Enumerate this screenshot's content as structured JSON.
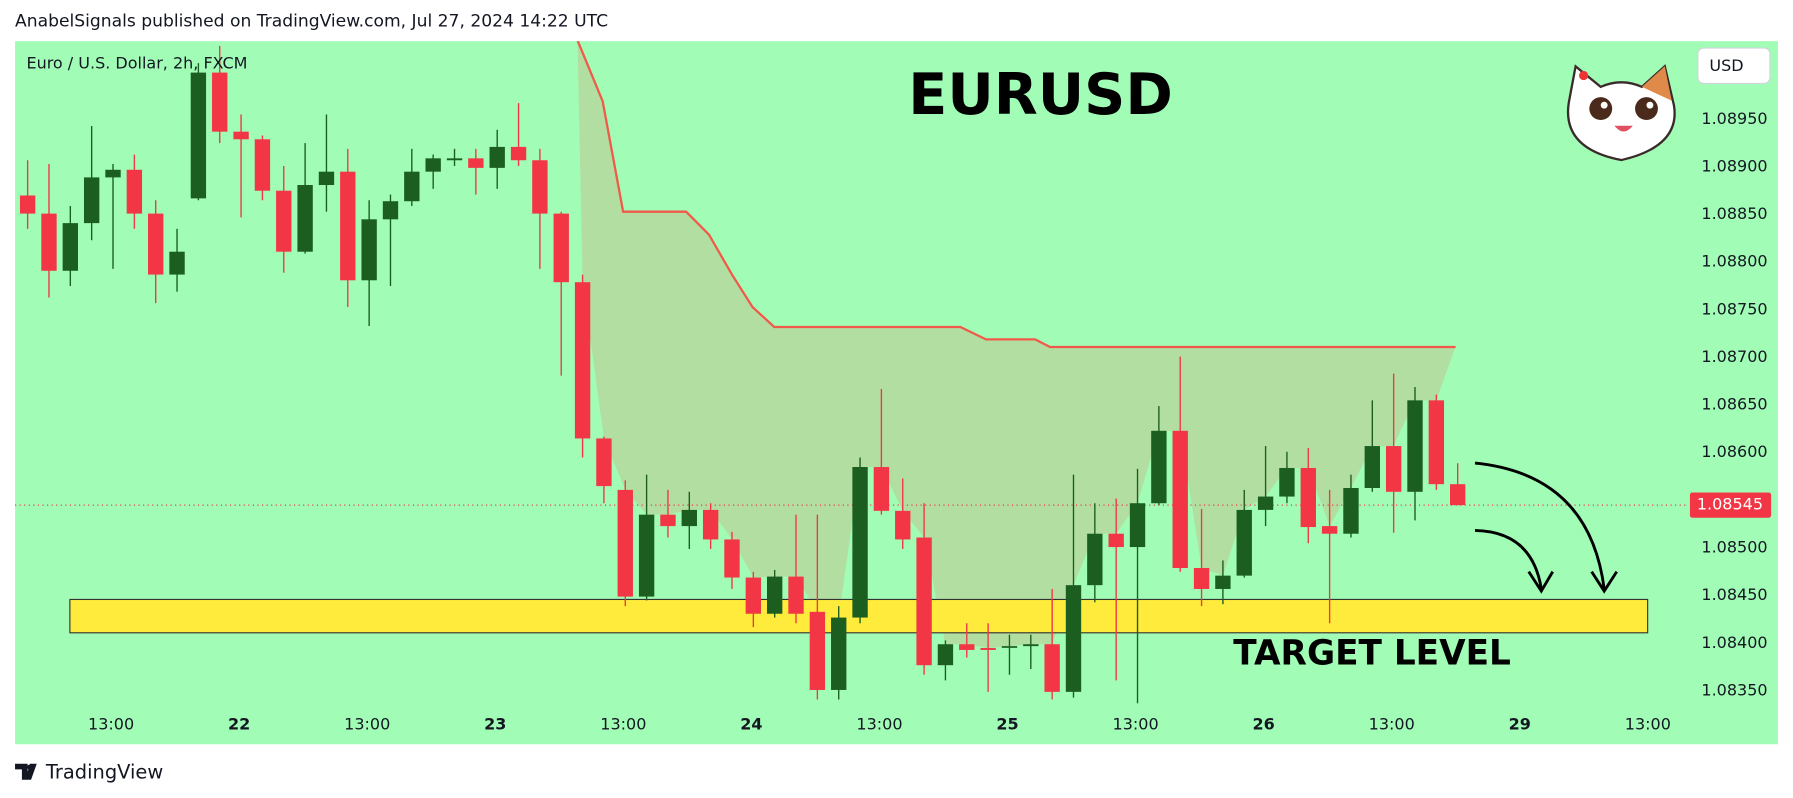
{
  "header": {
    "published": "AnabelSignals published on TradingView.com, Jul 27, 2024 14:22 UTC"
  },
  "footer": {
    "brand": "TradingView"
  },
  "chart_data": {
    "type": "candlestick",
    "title": "EURUSD",
    "symbol": "Euro / U.S. Dollar, 2h, FXCM",
    "currency": "USD",
    "up_color": "#1b5e20",
    "down_color": "#f23645",
    "background": "#a1fdb6",
    "open": [
      1.0887,
      1.08851,
      1.08791,
      1.08841,
      1.08889,
      1.08897,
      1.08851,
      1.08787,
      1.08867,
      1.08999,
      1.08937,
      1.08929,
      1.08875,
      1.08811,
      1.08881,
      1.08895,
      1.08781,
      1.08845,
      1.08864,
      1.08895,
      1.08907,
      1.08909,
      1.08899,
      1.08921,
      1.08907,
      1.08851,
      1.08779,
      1.08615,
      1.08561,
      1.08449,
      1.08535,
      1.08523,
      1.0854,
      1.08509,
      1.08469,
      1.08431,
      1.0847,
      1.08433,
      1.08351,
      1.08427,
      1.08585,
      1.08539,
      1.08511,
      1.08377,
      1.08399,
      1.08395,
      1.08396,
      1.08397,
      1.08399,
      1.08349,
      1.08461,
      1.08515,
      1.08501,
      1.08547,
      1.08623,
      1.08479,
      1.08457,
      1.08471,
      1.0854,
      1.08554,
      1.08584,
      1.08523,
      1.08515,
      1.08563,
      1.08607,
      1.08559,
      1.08655,
      1.08567
    ],
    "high": [
      1.08907,
      1.08903,
      1.08859,
      1.08943,
      1.08903,
      1.08913,
      1.08865,
      1.08835,
      1.09009,
      1.09027,
      1.08955,
      1.08933,
      1.08901,
      1.08925,
      1.08955,
      1.08919,
      1.08865,
      1.08871,
      1.08919,
      1.08913,
      1.08919,
      1.08919,
      1.08939,
      1.08967,
      1.08919,
      1.08853,
      1.08787,
      1.08617,
      1.08571,
      1.08577,
      1.08561,
      1.08559,
      1.08547,
      1.08517,
      1.08475,
      1.08477,
      1.08535,
      1.08535,
      1.08439,
      1.08595,
      1.08667,
      1.08573,
      1.08547,
      1.08403,
      1.08421,
      1.08421,
      1.08409,
      1.08409,
      1.08457,
      1.08577,
      1.08547,
      1.08552,
      1.08583,
      1.08649,
      1.08701,
      1.08541,
      1.08487,
      1.08561,
      1.08607,
      1.08601,
      1.08605,
      1.08561,
      1.08577,
      1.08655,
      1.08683,
      1.08669,
      1.08661,
      1.08589
    ],
    "low": [
      1.08835,
      1.08763,
      1.08775,
      1.08823,
      1.08793,
      1.08835,
      1.08757,
      1.08769,
      1.08865,
      1.08925,
      1.08847,
      1.08865,
      1.08789,
      1.08809,
      1.08853,
      1.08753,
      1.08733,
      1.08775,
      1.08859,
      1.08877,
      1.08901,
      1.08871,
      1.08877,
      1.08901,
      1.08793,
      1.08681,
      1.08595,
      1.08547,
      1.08439,
      1.08445,
      1.08511,
      1.08499,
      1.08499,
      1.08457,
      1.08417,
      1.08427,
      1.08421,
      1.08341,
      1.08341,
      1.08421,
      1.08535,
      1.08499,
      1.08367,
      1.08361,
      1.08385,
      1.08349,
      1.08367,
      1.08373,
      1.08341,
      1.08343,
      1.08443,
      1.08361,
      1.08337,
      1.08545,
      1.08475,
      1.08439,
      1.08441,
      1.08469,
      1.08523,
      1.08547,
      1.08505,
      1.08421,
      1.08511,
      1.08559,
      1.08516,
      1.08529,
      1.08561,
      1.08545
    ],
    "close": [
      1.08851,
      1.08791,
      1.08841,
      1.08889,
      1.08897,
      1.08851,
      1.08787,
      1.08811,
      1.08999,
      1.08937,
      1.08929,
      1.08875,
      1.08811,
      1.08881,
      1.08895,
      1.08781,
      1.08845,
      1.08864,
      1.08895,
      1.08909,
      1.08909,
      1.08899,
      1.08921,
      1.08907,
      1.08851,
      1.08779,
      1.08615,
      1.08565,
      1.08449,
      1.08535,
      1.08523,
      1.0854,
      1.08509,
      1.08469,
      1.08431,
      1.0847,
      1.08431,
      1.08351,
      1.08427,
      1.08585,
      1.08539,
      1.08509,
      1.08377,
      1.08399,
      1.08393,
      1.08393,
      1.08397,
      1.08399,
      1.08349,
      1.08461,
      1.08515,
      1.08501,
      1.08547,
      1.08623,
      1.08479,
      1.08457,
      1.08471,
      1.0854,
      1.08554,
      1.08584,
      1.08522,
      1.08515,
      1.08563,
      1.08607,
      1.08559,
      1.08655,
      1.08567,
      1.08545
    ],
    "trail_line": {
      "color": "#f05a4a",
      "x": [
        25.76,
        26.94,
        27.9,
        30.85,
        31.92,
        33.0,
        33.96,
        34.98,
        43.7,
        44.9,
        47.2,
        47.9,
        66.9
      ],
      "values": [
        1.09033,
        1.08969,
        1.08853,
        1.08853,
        1.08829,
        1.08787,
        1.08753,
        1.08732,
        1.08732,
        1.08719,
        1.08719,
        1.08711,
        1.08711
      ]
    },
    "target_zone": {
      "label": "TARGET LEVEL",
      "range": [
        1.08411,
        1.08446
      ],
      "x": [
        1.98,
        75.9
      ],
      "color": "#ffeb3b"
    },
    "last_price": 1.08545,
    "last_price_label": "1.08545",
    "xlim": [
      -0.59,
      77.72
    ],
    "ylim": [
      1.08294,
      1.09032
    ],
    "xticks": [
      {
        "value": 3.91,
        "label": "13:00"
      },
      {
        "value": 9.91,
        "label": "22"
      },
      {
        "value": 15.91,
        "label": "13:00"
      },
      {
        "value": 21.91,
        "label": "23"
      },
      {
        "value": 27.91,
        "label": "13:00"
      },
      {
        "value": 33.91,
        "label": "24"
      },
      {
        "value": 39.91,
        "label": "13:00"
      },
      {
        "value": 45.91,
        "label": "25"
      },
      {
        "value": 51.91,
        "label": "13:00"
      },
      {
        "value": 57.91,
        "label": "26"
      },
      {
        "value": 63.91,
        "label": "13:00"
      },
      {
        "value": 69.91,
        "label": "29"
      },
      {
        "value": 75.91,
        "label": "13:00"
      }
    ],
    "yticks": [
      {
        "value": 1.0835,
        "label": "1.08350"
      },
      {
        "value": 1.084,
        "label": "1.08400"
      },
      {
        "value": 1.0845,
        "label": "1.08450"
      },
      {
        "value": 1.085,
        "label": "1.08500"
      },
      {
        "value": 1.086,
        "label": "1.08600"
      },
      {
        "value": 1.0865,
        "label": "1.08650"
      },
      {
        "value": 1.087,
        "label": "1.08700"
      },
      {
        "value": 1.0875,
        "label": "1.08750"
      },
      {
        "value": 1.088,
        "label": "1.08800"
      },
      {
        "value": 1.0885,
        "label": "1.08850"
      },
      {
        "value": 1.089,
        "label": "1.08900"
      },
      {
        "value": 1.0895,
        "label": "1.08950"
      }
    ]
  }
}
